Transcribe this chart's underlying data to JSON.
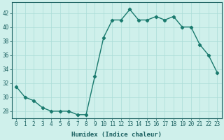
{
  "x": [
    0,
    1,
    2,
    3,
    4,
    5,
    6,
    7,
    8,
    9,
    10,
    11,
    12,
    13,
    14,
    15,
    16,
    17,
    18,
    19,
    20,
    21,
    22,
    23
  ],
  "y": [
    31.5,
    30,
    29.5,
    28.5,
    28,
    28,
    28,
    27.5,
    27.5,
    33,
    38.5,
    41,
    41,
    42.5,
    41,
    41,
    41.5,
    41,
    41.5,
    40,
    40,
    37.5,
    36,
    33.5
  ],
  "line_color": "#1a7a6e",
  "marker": "D",
  "marker_size": 2.2,
  "bg_color": "#cff0eb",
  "grid_color": "#aaddd7",
  "xlabel": "Humidex (Indice chaleur)",
  "xlim": [
    -0.5,
    23.5
  ],
  "ylim": [
    27,
    43.5
  ],
  "yticks": [
    28,
    30,
    32,
    34,
    36,
    38,
    40,
    42
  ],
  "xticks": [
    0,
    1,
    2,
    3,
    4,
    5,
    6,
    7,
    8,
    9,
    10,
    11,
    12,
    13,
    14,
    15,
    16,
    17,
    18,
    19,
    20,
    21,
    22,
    23
  ],
  "xlabel_fontsize": 6.5,
  "tick_fontsize": 5.5,
  "linewidth": 1.0
}
